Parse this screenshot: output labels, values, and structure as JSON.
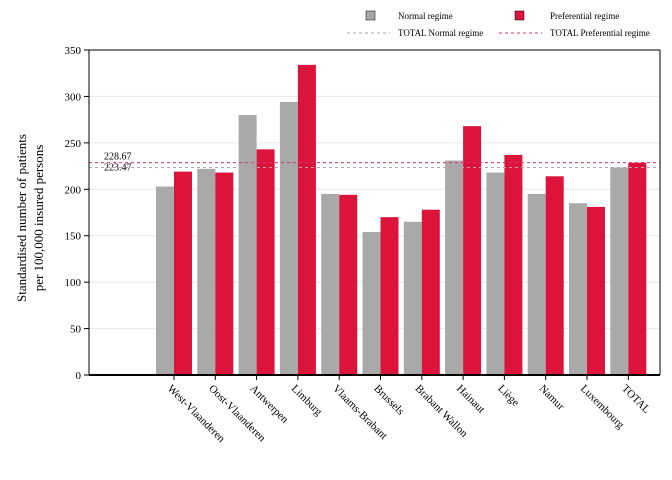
{
  "chart_data": {
    "type": "bar",
    "ylabel": [
      "Standardised number of patients",
      "per 100,000 insured persons"
    ],
    "xlabel": "",
    "ylim": [
      0,
      350
    ],
    "yticks": [
      0,
      50,
      100,
      150,
      200,
      250,
      300,
      350
    ],
    "grid": true,
    "legend_position": "top",
    "categories": [
      "West-Vlaanderen",
      "Oost-Vlaanderen",
      "Antwerpen",
      "Limburg",
      "Vlaams-Brabant",
      "Brussels",
      "Brabant Wallon",
      "Hainaut",
      "Liège",
      "Namur",
      "Luxembourg",
      "TOTAL"
    ],
    "series": [
      {
        "name": "Normal regime",
        "color": "#a9a9a9",
        "values": [
          203,
          222,
          280,
          294,
          195,
          154,
          165,
          231,
          218,
          195,
          185,
          223.47
        ]
      },
      {
        "name": "Preferential regime",
        "color": "#dc143c",
        "values": [
          219,
          218,
          243,
          334,
          194,
          170,
          178,
          268,
          237,
          214,
          181,
          228.67
        ]
      }
    ],
    "reference_lines": [
      {
        "name": "TOTAL Normal regime",
        "value": 223.47,
        "label": "223.47",
        "color": "#b8a0a8"
      },
      {
        "name": "TOTAL Preferential regime",
        "value": 228.67,
        "label": "228.67",
        "color": "#d4307a"
      }
    ]
  }
}
